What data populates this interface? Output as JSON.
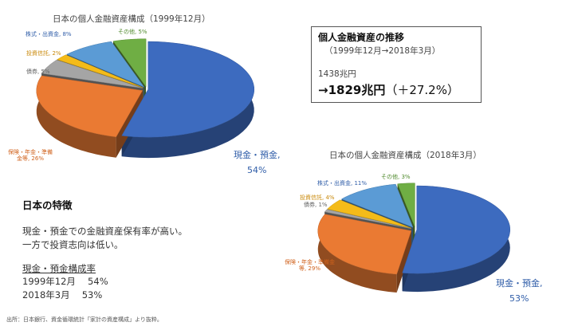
{
  "colors": {
    "cash": "#3d6bbf",
    "insurance": "#ea7a33",
    "bonds": "#a5a5a5",
    "trust": "#f4bb19",
    "stocks": "#5b9bd5",
    "other": "#6fae44"
  },
  "chart_data": [
    {
      "type": "pie",
      "style": "3d-exploded",
      "title": "日本の個人金融資産構成（1999年12月）",
      "slices": [
        {
          "key": "cash",
          "label": "現金・預金,",
          "pct_label": "54%",
          "value": 54
        },
        {
          "key": "insurance",
          "label": "保険・年金・準備",
          "label2": "金等, 26%",
          "value": 26
        },
        {
          "key": "bonds",
          "label": "債券, 5%",
          "value": 5
        },
        {
          "key": "trust",
          "label": "投資信託, 2%",
          "value": 2
        },
        {
          "key": "stocks",
          "label": "株式・出資金, 8%",
          "value": 8
        },
        {
          "key": "other",
          "label": "その他, 5%",
          "value": 5
        }
      ]
    },
    {
      "type": "pie",
      "style": "3d-exploded",
      "title": "日本の個人金融資産構成（2018年3月）",
      "slices": [
        {
          "key": "cash",
          "label": "現金・預金,",
          "pct_label": "53%",
          "value": 53
        },
        {
          "key": "insurance",
          "label": "保険・年金・準備金",
          "label2": "等, 29%",
          "value": 29
        },
        {
          "key": "bonds",
          "label": "債券, 1%",
          "value": 1
        },
        {
          "key": "trust",
          "label": "投資信託, 4%",
          "value": 4
        },
        {
          "key": "stocks",
          "label": "株式・出資金, 11%",
          "value": 11
        },
        {
          "key": "other",
          "label": "その他, 3%",
          "value": 3
        }
      ]
    }
  ],
  "info_box": {
    "heading": "個人金融資産の推移",
    "period": "（1999年12月→2018年3月）",
    "before": "1438兆円",
    "after_main": "→1829兆円",
    "after_change": "（＋27.2%）"
  },
  "features": {
    "title": "日本の特徴",
    "line1": "現金・預金での金融資産保有率が高い。",
    "line2": "一方で投資志向は低い。",
    "composition_title": "現金・預金構成率",
    "row1": "1999年12月　 54%",
    "row2": "2018年3月　 53%"
  },
  "source": "出所：日本銀行、資金循環統計「家計の資産構成」より抜粋。"
}
